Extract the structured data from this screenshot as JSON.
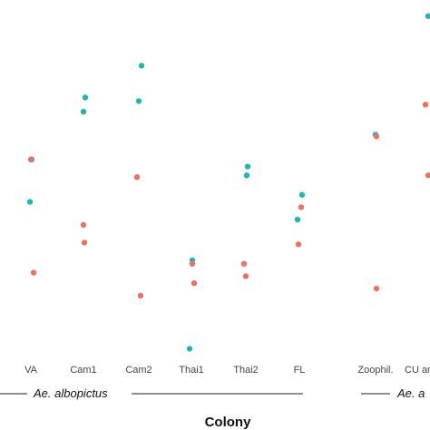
{
  "chart_data": {
    "type": "scatter",
    "xlabel": "Colony",
    "categories": [
      "VA",
      "Cam1",
      "Cam2",
      "Thai1",
      "Thai2",
      "FL",
      "Zoophil.",
      "CU ar"
    ],
    "groups": [
      {
        "label": "Ae. albopictus",
        "categories": [
          "VA",
          "Cam1",
          "Cam2",
          "Thai1",
          "Thai2",
          "FL"
        ]
      },
      {
        "label": "Ae. a",
        "categories": [
          "Zoophil.",
          "CU ar"
        ]
      }
    ],
    "colors": {
      "teal": "#1fb5b0",
      "salmon": "#e8735f"
    },
    "ylim": [
      0,
      100
    ],
    "grid": false,
    "series": [
      {
        "color": "teal",
        "points": [
          {
            "x": "VA",
            "y": 57.5
          },
          {
            "x": "VA",
            "y": 45.5
          },
          {
            "x": "Cam1",
            "y": 75
          },
          {
            "x": "Cam1",
            "y": 71
          },
          {
            "x": "Cam2",
            "y": 84
          },
          {
            "x": "Cam2",
            "y": 74
          },
          {
            "x": "Thai1",
            "y": 29
          },
          {
            "x": "Thai1",
            "y": 4
          },
          {
            "x": "Thai2",
            "y": 55.5
          },
          {
            "x": "Thai2",
            "y": 53
          },
          {
            "x": "FL",
            "y": 47.5
          },
          {
            "x": "FL",
            "y": 40.5
          },
          {
            "x": "Zoophil.",
            "y": 64.5
          },
          {
            "x": "CU ar",
            "y": 98
          }
        ]
      },
      {
        "color": "salmon",
        "points": [
          {
            "x": "VA",
            "y": 57.5
          },
          {
            "x": "VA",
            "y": 25.5
          },
          {
            "x": "Cam1",
            "y": 39
          },
          {
            "x": "Cam1",
            "y": 34
          },
          {
            "x": "Cam2",
            "y": 52.5
          },
          {
            "x": "Cam2",
            "y": 19
          },
          {
            "x": "Thai1",
            "y": 28
          },
          {
            "x": "Thai1",
            "y": 22.5
          },
          {
            "x": "Thai2",
            "y": 28
          },
          {
            "x": "Thai2",
            "y": 24.5
          },
          {
            "x": "FL",
            "y": 44
          },
          {
            "x": "FL",
            "y": 33.5
          },
          {
            "x": "Zoophil.",
            "y": 64
          },
          {
            "x": "Zoophil.",
            "y": 21
          },
          {
            "x": "CU ar",
            "y": 73
          },
          {
            "x": "CU ar",
            "y": 53
          }
        ]
      }
    ]
  }
}
